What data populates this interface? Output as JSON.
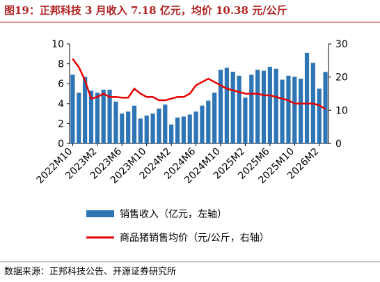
{
  "chart_data": {
    "type": "bar-line",
    "title": "图19：正邦科技 3 月收入 7.18 亿元，均价 10.38 元/公斤",
    "categories": [
      "2022M10",
      null,
      null,
      null,
      "2023M2",
      null,
      null,
      null,
      "2023M6",
      null,
      null,
      null,
      "2023M10",
      null,
      null,
      null,
      "2024M2",
      null,
      null,
      null,
      "2024M6",
      null,
      null,
      null,
      "2024M10",
      null,
      null,
      null,
      "2025M2",
      null,
      null,
      null,
      "2025M6",
      null,
      null,
      null,
      "2025M10",
      null,
      null,
      null,
      "2026M2",
      null
    ],
    "series": [
      {
        "name": "销售收入（亿元，左轴）",
        "color": "#2e75b6",
        "axis": "y",
        "values": [
          6.9,
          5.1,
          6.7,
          5.3,
          5.1,
          5.4,
          5.4,
          4.2,
          3.0,
          3.2,
          3.8,
          2.5,
          2.8,
          3.0,
          3.5,
          3.9,
          1.9,
          2.6,
          2.7,
          2.9,
          3.2,
          3.8,
          4.3,
          5.1,
          7.4,
          7.6,
          7.2,
          6.8,
          4.6,
          6.9,
          7.4,
          7.3,
          7.7,
          7.5,
          6.4,
          6.8,
          6.7,
          6.5,
          9.1,
          8.1,
          5.5,
          7.18
        ]
      },
      {
        "name": "商品猪销售均价（元/公斤，右轴）",
        "color": "#e60000",
        "axis": "y2",
        "values": [
          25.5,
          23,
          19,
          13.5,
          14,
          15,
          14,
          14,
          13.8,
          13.8,
          16.5,
          15,
          14,
          14,
          13,
          13,
          13.5,
          14,
          14,
          15,
          17.5,
          18.5,
          19.5,
          18.5,
          17.5,
          16.5,
          16,
          15.5,
          15,
          15,
          15,
          14.5,
          14.5,
          14,
          13.5,
          13,
          12,
          12,
          12,
          12,
          11.5,
          10.38
        ]
      }
    ],
    "ylim": [
      0,
      10
    ],
    "yticks": [
      0,
      2,
      4,
      6,
      8,
      10
    ],
    "y2lim": [
      0,
      30
    ],
    "y2ticks": [
      0,
      10,
      20,
      30
    ],
    "source": "数据来源：正邦科技公告、开源证券研究所"
  }
}
